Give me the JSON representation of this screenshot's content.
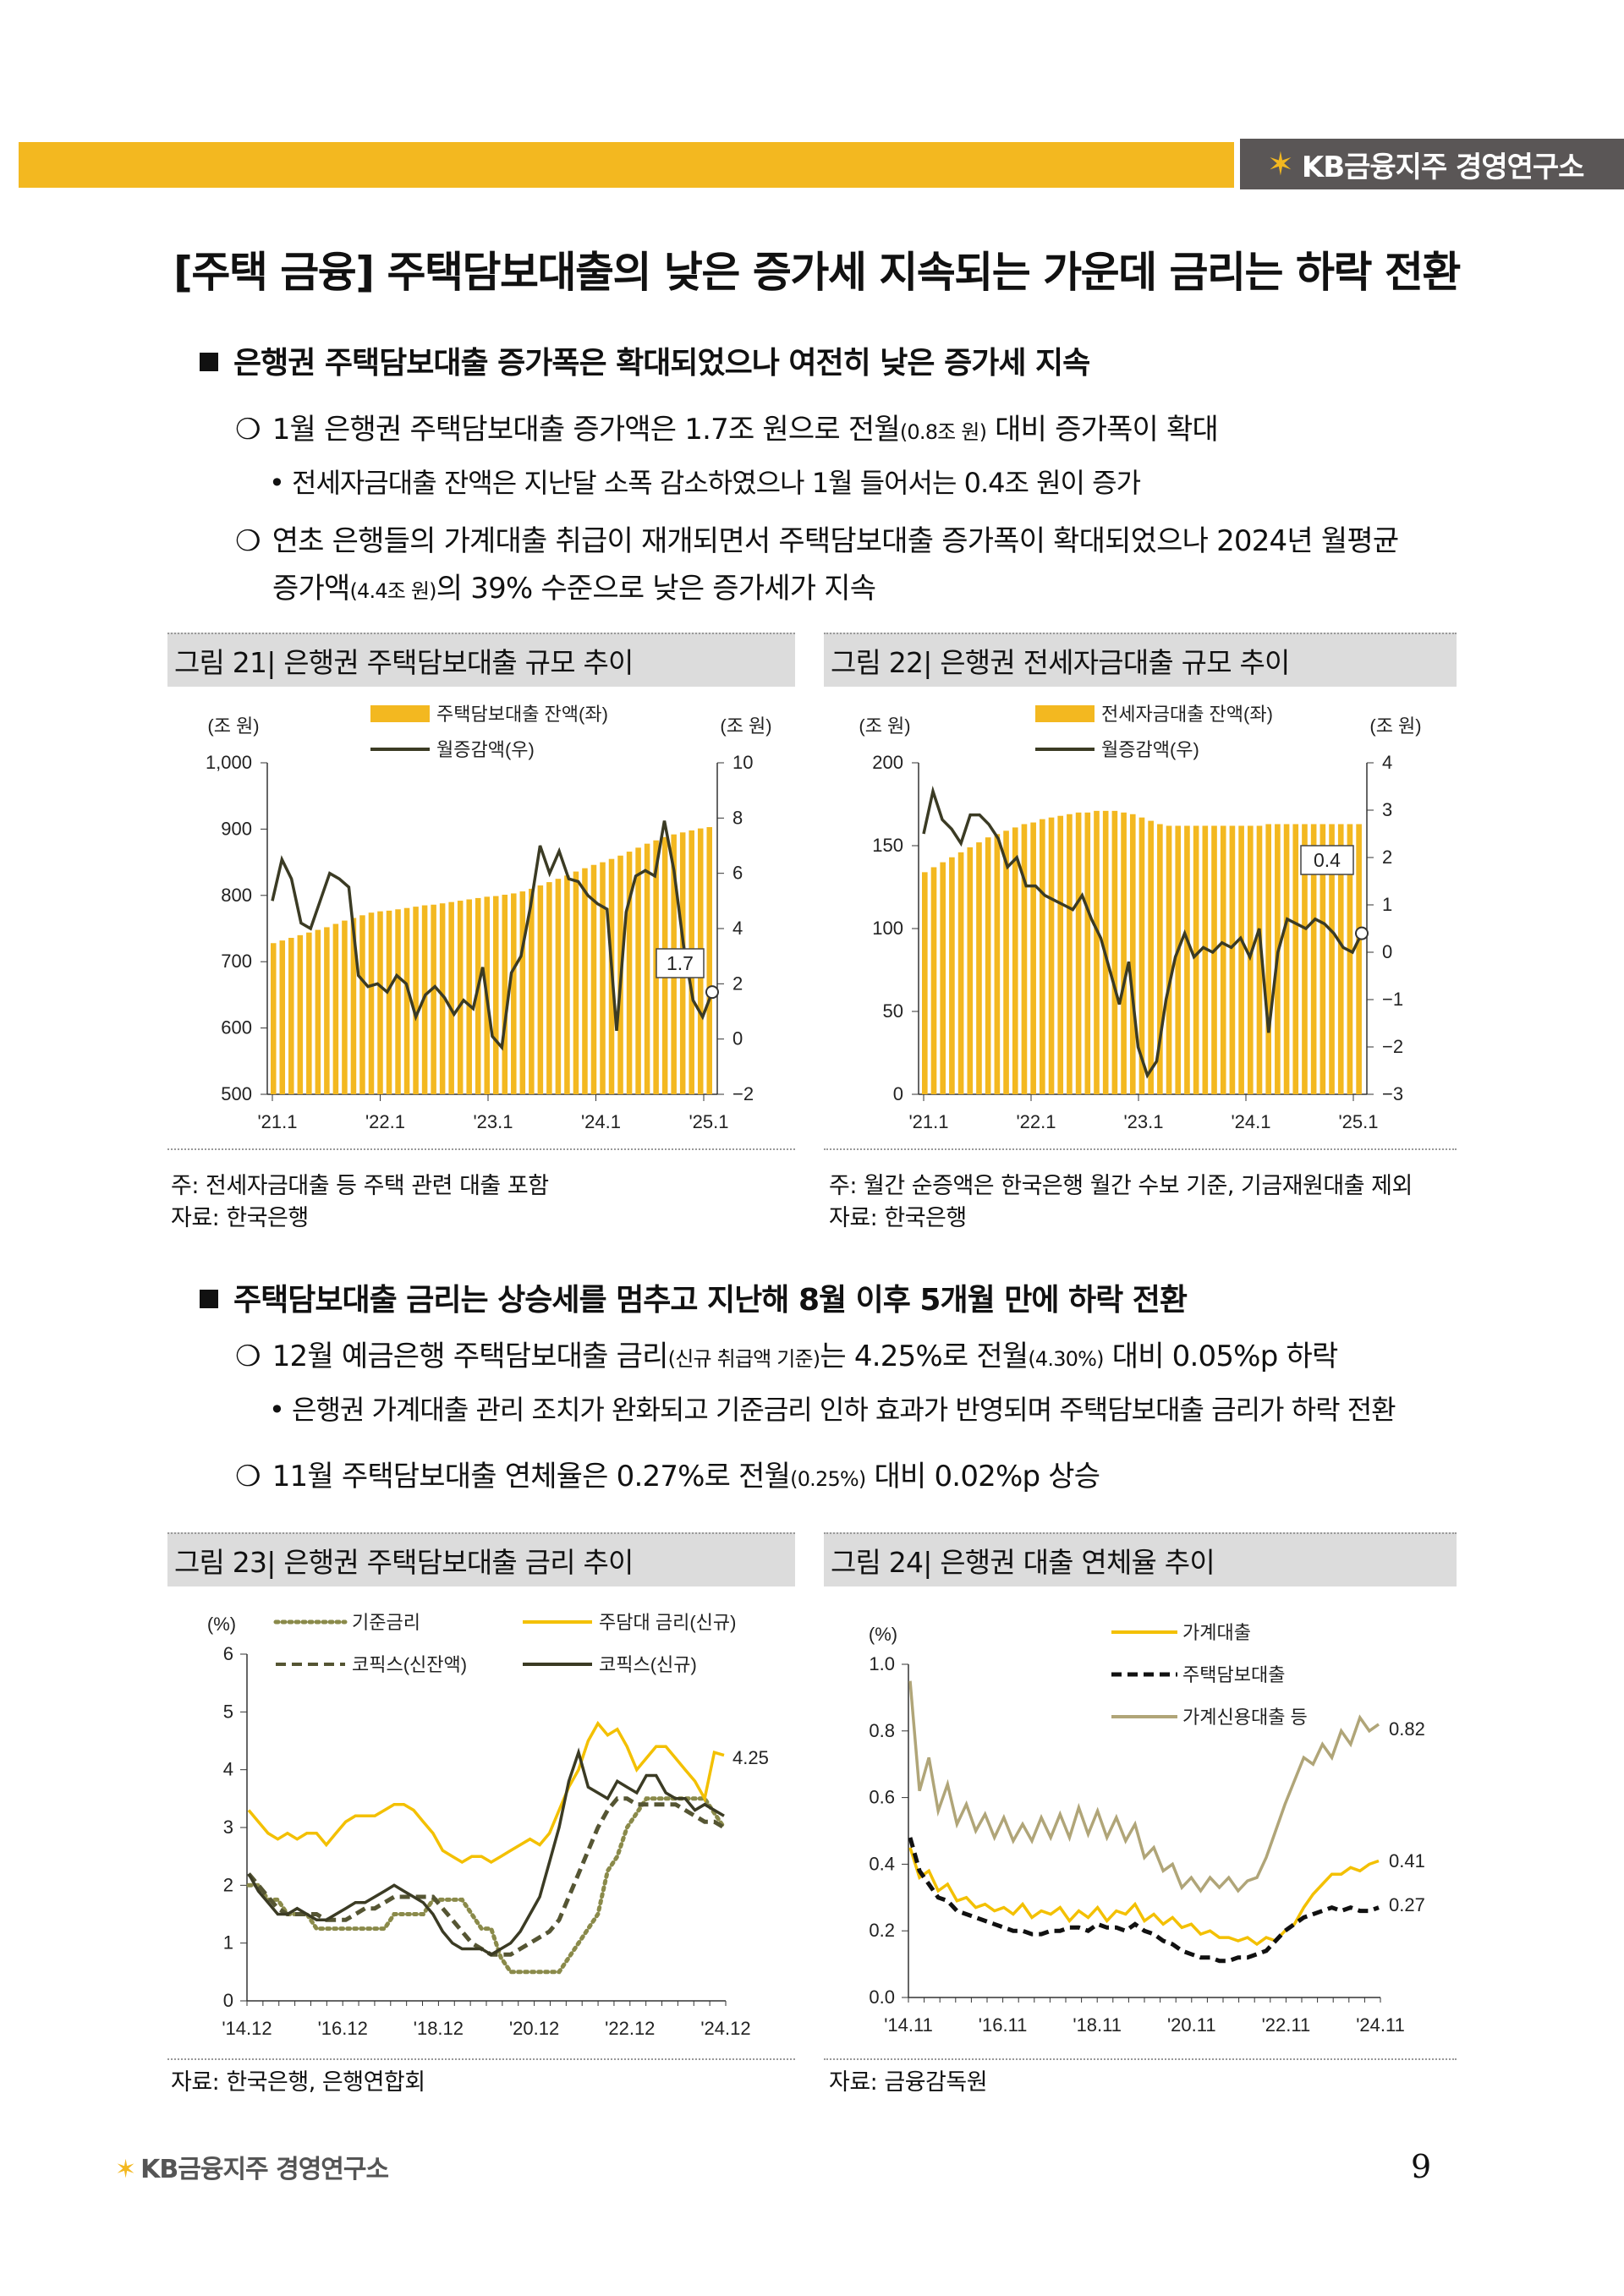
{
  "header": {
    "brand": "KB금융지주 경영연구소"
  },
  "title": "[주택 금융] 주택담보대출의 낮은 증가세 지속되는 가운데 금리는 하락 전환",
  "section1": {
    "heading": "은행권 주택담보대출 증가폭은 확대되었으나 여전히 낮은 증가세 지속",
    "b1": {
      "pre": "1월 은행권 주택담보대출 증가액은 1.7조 원으로 전월",
      "small": "(0.8조 원)",
      "post": " 대비 증가폭이 확대"
    },
    "b1_sub": "• 전세자금대출 잔액은 지난달 소폭 감소하였으나 1월 들어서는 0.4조 원이 증가",
    "b2_line1": "연초 은행들의 가계대출 취급이 재개되면서 주택담보대출 증가폭이 확대되었으나 2024년 월평균",
    "b2_line2": {
      "pre": "증가액",
      "small": "(4.4조 원)",
      "post": "의 39% 수준으로 낮은 증가세가 지속"
    }
  },
  "section2": {
    "heading": "주택담보대출 금리는 상승세를 멈추고 지난해 8월 이후 5개월 만에 하락 전환",
    "b1": {
      "pre": "12월 예금은행 주택담보대출 금리",
      "small": "(신규 취급액 기준)",
      "mid": "는 4.25%로 전월",
      "small2": "(4.30%)",
      "post": " 대비 0.05%p 하락"
    },
    "b1_sub": "• 은행권 가계대출 관리 조치가 완화되고 기준금리 인하 효과가 반영되며 주택담보대출 금리가 하락 전환",
    "b2": {
      "pre": "11월 주택담보대출 연체율은 0.27%로 전월",
      "small": "(0.25%)",
      "post": " 대비 0.02%p 상승"
    }
  },
  "fig21": {
    "title": "그림 21| 은행권 주택담보대출 규모 추이",
    "note": "주: 전세자금대출 등 주택 관련 대출 포함",
    "source": "자료: 한국은행"
  },
  "fig22": {
    "title": "그림 22| 은행권 전세자금대출 규모 추이",
    "note": "주: 월간 순증액은 한국은행 월간 수보 기준, 기금재원대출 제외",
    "source": "자료: 한국은행"
  },
  "fig23": {
    "title": "그림 23| 은행권 주택담보대출 금리 추이",
    "source": "자료: 한국은행, 은행연합회"
  },
  "fig24": {
    "title": "그림 24| 은행권 대출 연체율 추이",
    "source": "자료: 금융감독원"
  },
  "chart_data": [
    {
      "type": "bar",
      "title": "그림 21| 은행권 주택담보대출 규모 추이",
      "unit_left": "(조 원)",
      "unit_right": "(조 원)",
      "ylim_left": [
        500,
        1000
      ],
      "ylim_right": [
        -2,
        10
      ],
      "yticks_left": [
        "500",
        "600",
        "700",
        "800",
        "900",
        "1,000"
      ],
      "yticks_right": [
        "−2",
        "0",
        "2",
        "4",
        "6",
        "8",
        "10"
      ],
      "xticks": [
        "'21.1",
        "'22.1",
        "'23.1",
        "'24.1",
        "'25.1"
      ],
      "bar_series": {
        "name": "주택담보대출 잔액(좌)",
        "color": "#f3b820",
        "values": [
          728,
          732,
          736,
          740,
          744,
          748,
          752,
          757,
          762,
          766,
          770,
          774,
          776,
          777,
          779,
          781,
          783,
          785,
          786,
          788,
          790,
          792,
          794,
          796,
          798,
          799,
          801,
          803,
          806,
          810,
          815,
          820,
          825,
          830,
          836,
          841,
          846,
          850,
          855,
          860,
          866,
          872,
          878,
          883,
          888,
          892,
          895,
          898,
          901,
          903
        ]
      },
      "line_series": {
        "name": "월증감액(우)",
        "color": "#3b3b24",
        "values": [
          5.0,
          6.5,
          5.8,
          4.2,
          4.0,
          5.0,
          6.0,
          5.8,
          5.5,
          2.3,
          1.9,
          2.0,
          1.7,
          2.3,
          2.0,
          0.8,
          1.6,
          1.9,
          1.5,
          0.9,
          1.4,
          1.1,
          2.6,
          0.1,
          -0.3,
          2.4,
          3.0,
          4.8,
          7.0,
          6.0,
          6.8,
          5.8,
          5.7,
          5.2,
          4.9,
          4.7,
          0.3,
          4.6,
          5.9,
          6.1,
          5.9,
          7.9,
          6.1,
          3.4,
          1.4,
          0.8,
          1.7
        ]
      },
      "callout": {
        "text": "1.7"
      }
    },
    {
      "type": "bar",
      "title": "그림 22| 은행권 전세자금대출 규모 추이",
      "unit_left": "(조 원)",
      "unit_right": "(조 원)",
      "ylim_left": [
        0,
        200
      ],
      "ylim_right": [
        -3,
        4
      ],
      "yticks_left": [
        "0",
        "50",
        "100",
        "150",
        "200"
      ],
      "yticks_right": [
        "−3",
        "−2",
        "−1",
        "0",
        "1",
        "2",
        "3",
        "4"
      ],
      "xticks": [
        "'21.1",
        "'22.1",
        "'23.1",
        "'24.1",
        "'25.1"
      ],
      "bar_series": {
        "name": "전세자금대출 잔액(좌)",
        "color": "#f3b820",
        "values": [
          134,
          137,
          140,
          143,
          146,
          149,
          152,
          155,
          157,
          159,
          161,
          163,
          164,
          166,
          167,
          168,
          169,
          170,
          170,
          171,
          171,
          171,
          170,
          169,
          167,
          165,
          163,
          162,
          162,
          162,
          162,
          162,
          162,
          162,
          162,
          162,
          162,
          162,
          163,
          163,
          163,
          163,
          163,
          163,
          163,
          163,
          163,
          163,
          163
        ]
      },
      "line_series": {
        "name": "월증감액(우)",
        "color": "#3b3b24",
        "values": [
          2.5,
          3.4,
          2.8,
          2.6,
          2.3,
          2.9,
          2.9,
          2.7,
          2.4,
          1.8,
          2.0,
          1.4,
          1.4,
          1.2,
          1.1,
          1.0,
          0.9,
          1.2,
          0.7,
          0.3,
          -0.4,
          -1.1,
          -0.2,
          -2.0,
          -2.6,
          -2.3,
          -1.0,
          -0.1,
          0.4,
          -0.1,
          0.1,
          0.0,
          0.2,
          0.1,
          0.3,
          -0.1,
          0.5,
          -1.7,
          0.0,
          0.7,
          0.6,
          0.5,
          0.7,
          0.6,
          0.4,
          0.1,
          0.0,
          0.4
        ]
      },
      "callout": {
        "text": "0.4"
      }
    },
    {
      "type": "line",
      "title": "그림 23| 은행권 주택담보대출 금리 추이",
      "unit": "(%)",
      "ylim": [
        0,
        6
      ],
      "yticks": [
        "0",
        "1",
        "2",
        "3",
        "4",
        "5",
        "6"
      ],
      "xticks": [
        "'14.12",
        "'16.12",
        "'18.12",
        "'20.12",
        "'22.12",
        "'24.12"
      ],
      "series": [
        {
          "name": "기준금리",
          "style": "dotted",
          "color": "#8a8a4a",
          "values": [
            2.0,
            2.0,
            1.75,
            1.75,
            1.5,
            1.5,
            1.5,
            1.25,
            1.25,
            1.25,
            1.25,
            1.25,
            1.25,
            1.25,
            1.25,
            1.5,
            1.5,
            1.5,
            1.5,
            1.75,
            1.75,
            1.75,
            1.75,
            1.5,
            1.25,
            1.25,
            0.75,
            0.5,
            0.5,
            0.5,
            0.5,
            0.5,
            0.5,
            0.75,
            1.0,
            1.25,
            1.5,
            2.25,
            2.5,
            3.0,
            3.25,
            3.5,
            3.5,
            3.5,
            3.5,
            3.5,
            3.5,
            3.5,
            3.25,
            3.0
          ]
        },
        {
          "name": "주담대 금리(신규)",
          "style": "solid",
          "color": "#f3c000",
          "values": [
            3.3,
            3.1,
            2.9,
            2.8,
            2.9,
            2.8,
            2.9,
            2.9,
            2.7,
            2.9,
            3.1,
            3.2,
            3.2,
            3.2,
            3.3,
            3.4,
            3.4,
            3.3,
            3.1,
            2.9,
            2.6,
            2.5,
            2.4,
            2.5,
            2.5,
            2.4,
            2.5,
            2.6,
            2.7,
            2.8,
            2.7,
            2.9,
            3.3,
            3.7,
            4.0,
            4.5,
            4.8,
            4.6,
            4.7,
            4.4,
            4.0,
            4.2,
            4.4,
            4.4,
            4.2,
            4.0,
            3.8,
            3.5,
            4.3,
            4.25
          ]
        },
        {
          "name": "코픽스(신잔액)",
          "style": "dashed",
          "color": "#555533",
          "values": [
            2.2,
            2.0,
            1.8,
            1.6,
            1.5,
            1.5,
            1.5,
            1.5,
            1.4,
            1.4,
            1.4,
            1.5,
            1.6,
            1.6,
            1.7,
            1.8,
            1.8,
            1.8,
            1.8,
            1.8,
            1.6,
            1.4,
            1.2,
            1.0,
            0.9,
            0.8,
            0.8,
            0.8,
            0.9,
            1.0,
            1.1,
            1.2,
            1.4,
            1.8,
            2.2,
            2.6,
            3.0,
            3.3,
            3.5,
            3.5,
            3.4,
            3.4,
            3.4,
            3.4,
            3.4,
            3.3,
            3.2,
            3.1,
            3.1,
            3.0
          ]
        },
        {
          "name": "코픽스(신규)",
          "style": "solid",
          "color": "#3b3b24",
          "values": [
            2.2,
            1.9,
            1.7,
            1.5,
            1.5,
            1.6,
            1.5,
            1.4,
            1.4,
            1.5,
            1.6,
            1.7,
            1.7,
            1.8,
            1.9,
            2.0,
            1.9,
            1.8,
            1.7,
            1.5,
            1.2,
            1.0,
            0.9,
            0.9,
            0.9,
            0.8,
            0.9,
            1.0,
            1.2,
            1.5,
            1.8,
            2.4,
            3.0,
            3.8,
            4.3,
            3.7,
            3.6,
            3.5,
            3.8,
            3.7,
            3.6,
            3.9,
            3.9,
            3.6,
            3.5,
            3.5,
            3.3,
            3.4,
            3.3,
            3.2
          ]
        }
      ],
      "label_end": "4.25"
    },
    {
      "type": "line",
      "title": "그림 24| 은행권 대출 연체율 추이",
      "unit": "(%)",
      "ylim": [
        0,
        1.0
      ],
      "yticks": [
        "0.0",
        "0.2",
        "0.4",
        "0.6",
        "0.8",
        "1.0"
      ],
      "xticks": [
        "'14.11",
        "'16.11",
        "'18.11",
        "'20.11",
        "'22.11",
        "'24.11"
      ],
      "series": [
        {
          "name": "가계대출",
          "style": "solid",
          "color": "#f3c000",
          "values": [
            0.45,
            0.36,
            0.38,
            0.32,
            0.34,
            0.29,
            0.3,
            0.27,
            0.28,
            0.26,
            0.27,
            0.25,
            0.28,
            0.24,
            0.26,
            0.25,
            0.27,
            0.23,
            0.26,
            0.24,
            0.27,
            0.23,
            0.26,
            0.25,
            0.28,
            0.23,
            0.25,
            0.22,
            0.24,
            0.21,
            0.22,
            0.19,
            0.2,
            0.18,
            0.18,
            0.17,
            0.18,
            0.16,
            0.18,
            0.17,
            0.2,
            0.22,
            0.27,
            0.31,
            0.34,
            0.37,
            0.37,
            0.39,
            0.38,
            0.4,
            0.41
          ]
        },
        {
          "name": "주택담보대출",
          "style": "dashed",
          "color": "#111111",
          "values": [
            0.48,
            0.38,
            0.34,
            0.3,
            0.29,
            0.26,
            0.25,
            0.24,
            0.23,
            0.22,
            0.21,
            0.2,
            0.2,
            0.19,
            0.19,
            0.2,
            0.2,
            0.21,
            0.21,
            0.2,
            0.22,
            0.21,
            0.21,
            0.2,
            0.22,
            0.2,
            0.19,
            0.17,
            0.16,
            0.14,
            0.13,
            0.12,
            0.12,
            0.11,
            0.11,
            0.12,
            0.12,
            0.13,
            0.14,
            0.17,
            0.2,
            0.22,
            0.24,
            0.25,
            0.26,
            0.27,
            0.26,
            0.27,
            0.26,
            0.26,
            0.27
          ]
        },
        {
          "name": "가계신용대출 등",
          "style": "solid",
          "color": "#b0a578",
          "values": [
            0.95,
            0.62,
            0.72,
            0.56,
            0.64,
            0.52,
            0.58,
            0.5,
            0.55,
            0.48,
            0.54,
            0.47,
            0.52,
            0.47,
            0.54,
            0.48,
            0.55,
            0.48,
            0.57,
            0.49,
            0.56,
            0.48,
            0.54,
            0.47,
            0.52,
            0.42,
            0.45,
            0.38,
            0.4,
            0.33,
            0.36,
            0.32,
            0.36,
            0.33,
            0.36,
            0.32,
            0.35,
            0.36,
            0.42,
            0.5,
            0.58,
            0.65,
            0.72,
            0.7,
            0.76,
            0.72,
            0.8,
            0.76,
            0.84,
            0.8,
            0.82
          ]
        }
      ],
      "labels_end": [
        "0.82",
        "0.41",
        "0.27"
      ]
    }
  ]
}
